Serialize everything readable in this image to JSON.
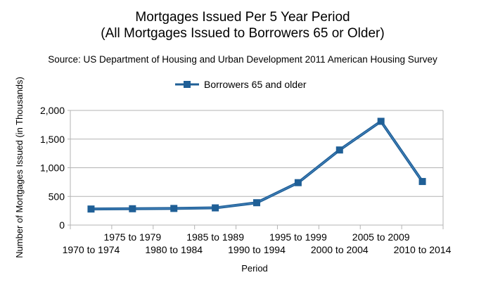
{
  "chart_data": {
    "type": "line",
    "title": "Mortgages Issued Per 5 Year Period",
    "title_line2": "(All Mortgages Issued to Borrowers 65 or Older)",
    "subtitle": "Source: US Department of Housing and Urban Development 2011 American Housing Survey",
    "xlabel": "Period",
    "ylabel": "Number of Mortgages Issued (in Thousands)",
    "ylim": [
      0,
      2000
    ],
    "yticks": [
      0,
      500,
      1000,
      1500,
      2000
    ],
    "ytick_labels": [
      "0",
      "500",
      "1,000",
      "1,500",
      "2,000"
    ],
    "categories": [
      "1970 to 1974",
      "1975 to 1979",
      "1980 to 1984",
      "1985 to 1989",
      "1990 to 1994",
      "1995 to 1999",
      "2000 to 2004",
      "2005 to 2009",
      "2010 to 2014"
    ],
    "series": [
      {
        "name": "Borrowers 65 and older",
        "values": [
          280,
          285,
          290,
          300,
          390,
          740,
          1310,
          1810,
          760
        ],
        "color": "#1f5f96"
      }
    ],
    "grid": "horizontal",
    "legend_position": "top-center",
    "marker": "square"
  }
}
